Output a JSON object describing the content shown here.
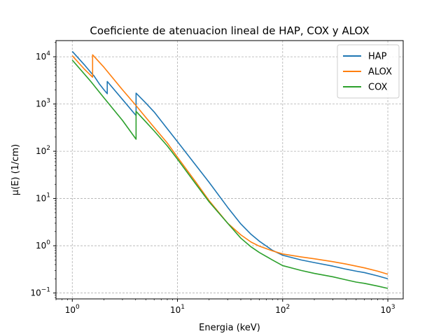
{
  "chart_data": {
    "type": "line",
    "title": "Coeficiente de atenuacion lineal de HAP, COX y ALOX",
    "xlabel": "Energia (keV)",
    "ylabel": "μ(E) (1/cm)",
    "xscale": "log",
    "yscale": "log",
    "xlim": [
      0.7,
      1400
    ],
    "ylim": [
      0.075,
      22000
    ],
    "xticks": [
      {
        "value": 1,
        "base": "10",
        "exp": "0"
      },
      {
        "value": 10,
        "base": "10",
        "exp": "1"
      },
      {
        "value": 100,
        "base": "10",
        "exp": "2"
      },
      {
        "value": 1000,
        "base": "10",
        "exp": "3"
      }
    ],
    "yticks": [
      {
        "value": 0.1,
        "base": "10",
        "exp": "−1"
      },
      {
        "value": 1,
        "base": "10",
        "exp": "0"
      },
      {
        "value": 10,
        "base": "10",
        "exp": "1"
      },
      {
        "value": 100,
        "base": "10",
        "exp": "2"
      },
      {
        "value": 1000,
        "base": "10",
        "exp": "3"
      },
      {
        "value": 10000,
        "base": "10",
        "exp": "4"
      }
    ],
    "grid": true,
    "legend_position": "top-right",
    "series": [
      {
        "name": "HAP",
        "color": "#1f77b4",
        "points": [
          [
            1,
            13000
          ],
          [
            1.3,
            6800
          ],
          [
            1.56,
            4200
          ],
          [
            1.6,
            4000
          ],
          [
            1.8,
            2700
          ],
          [
            2.0,
            2000
          ],
          [
            2.15,
            1650
          ],
          [
            2.15,
            3000
          ],
          [
            3.0,
            1250
          ],
          [
            4.04,
            570
          ],
          [
            4.04,
            1700
          ],
          [
            5.0,
            1050
          ],
          [
            6.0,
            680
          ],
          [
            8.0,
            300
          ],
          [
            10.0,
            160
          ],
          [
            15.0,
            50
          ],
          [
            20.0,
            22
          ],
          [
            30.0,
            6.5
          ],
          [
            40.0,
            2.9
          ],
          [
            50.0,
            1.75
          ],
          [
            60.0,
            1.25
          ],
          [
            80.0,
            0.8
          ],
          [
            100.0,
            0.63
          ],
          [
            150.0,
            0.5
          ],
          [
            200.0,
            0.44
          ],
          [
            300.0,
            0.37
          ],
          [
            400.0,
            0.32
          ],
          [
            500.0,
            0.29
          ],
          [
            600.0,
            0.27
          ],
          [
            800.0,
            0.23
          ],
          [
            1000.0,
            0.2
          ]
        ]
      },
      {
        "name": "ALOX",
        "color": "#ff7f0e",
        "points": [
          [
            1,
            10500
          ],
          [
            1.3,
            5500
          ],
          [
            1.56,
            3700
          ],
          [
            1.56,
            11000
          ],
          [
            2.0,
            6000
          ],
          [
            3.0,
            2000
          ],
          [
            4.0,
            950
          ],
          [
            5.0,
            520
          ],
          [
            6.0,
            320
          ],
          [
            8.0,
            150
          ],
          [
            10.0,
            75
          ],
          [
            15.0,
            22
          ],
          [
            20.0,
            9
          ],
          [
            30.0,
            3
          ],
          [
            40.0,
            1.7
          ],
          [
            50.0,
            1.2
          ],
          [
            60.0,
            0.98
          ],
          [
            80.0,
            0.78
          ],
          [
            100.0,
            0.67
          ],
          [
            150.0,
            0.58
          ],
          [
            200.0,
            0.53
          ],
          [
            300.0,
            0.46
          ],
          [
            400.0,
            0.41
          ],
          [
            500.0,
            0.37
          ],
          [
            600.0,
            0.34
          ],
          [
            800.0,
            0.29
          ],
          [
            1000.0,
            0.25
          ]
        ]
      },
      {
        "name": "COX",
        "color": "#2ca02c",
        "points": [
          [
            1,
            8500
          ],
          [
            1.5,
            3000
          ],
          [
            2.0,
            1350
          ],
          [
            3.0,
            450
          ],
          [
            4.04,
            180
          ],
          [
            4.04,
            700
          ],
          [
            5.0,
            420
          ],
          [
            6.0,
            270
          ],
          [
            8.0,
            130
          ],
          [
            10.0,
            68
          ],
          [
            15.0,
            20
          ],
          [
            20.0,
            8.5
          ],
          [
            30.0,
            3
          ],
          [
            40.0,
            1.45
          ],
          [
            50.0,
            0.95
          ],
          [
            60.0,
            0.72
          ],
          [
            80.0,
            0.5
          ],
          [
            100.0,
            0.38
          ],
          [
            150.0,
            0.3
          ],
          [
            200.0,
            0.26
          ],
          [
            300.0,
            0.22
          ],
          [
            400.0,
            0.19
          ],
          [
            500.0,
            0.17
          ],
          [
            600.0,
            0.16
          ],
          [
            800.0,
            0.14
          ],
          [
            1000.0,
            0.125
          ]
        ]
      }
    ]
  }
}
